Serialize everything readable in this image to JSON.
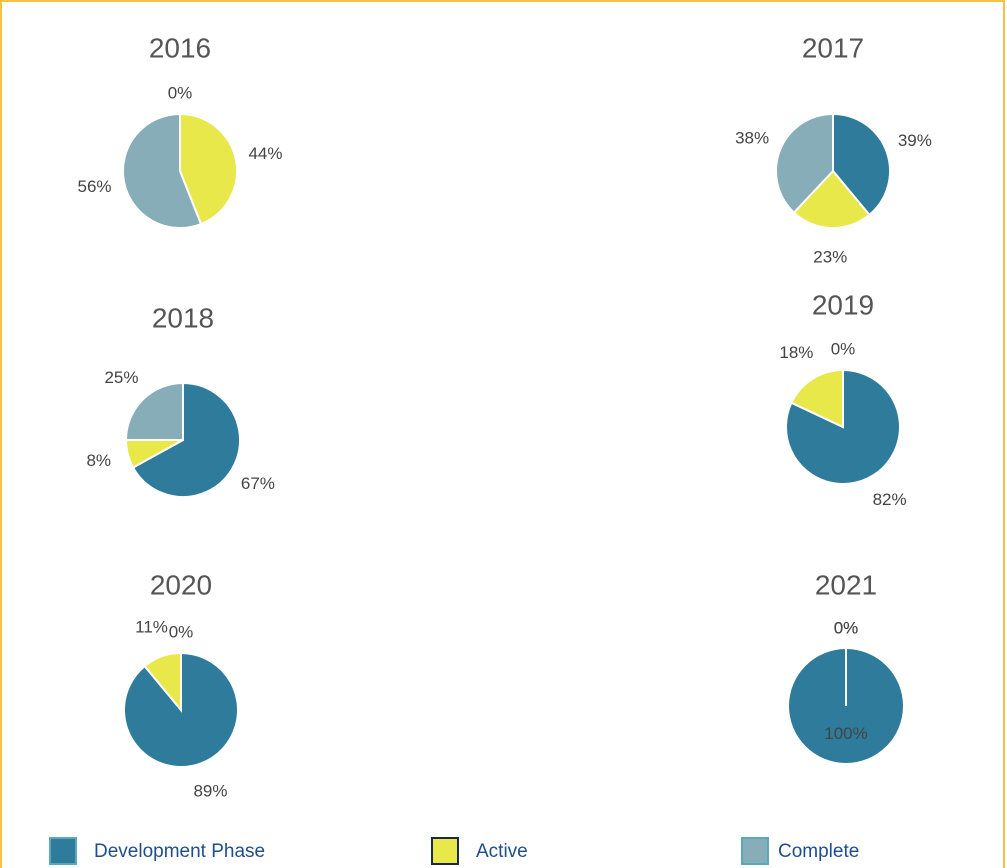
{
  "chart_data": [
    {
      "type": "pie",
      "title": "2016",
      "categories": [
        "Development Phase",
        "Active",
        "Complete"
      ],
      "values": [
        0,
        44,
        56
      ],
      "value_labels": [
        "0%",
        "44%",
        "56%"
      ],
      "colors": [
        "#2e7b9b",
        "#e8e84a",
        "#87adb8"
      ]
    },
    {
      "type": "pie",
      "title": "2017",
      "categories": [
        "Development Phase",
        "Active",
        "Complete"
      ],
      "values": [
        39,
        23,
        38
      ],
      "value_labels": [
        "39%",
        "23%",
        "38%"
      ],
      "colors": [
        "#2e7b9b",
        "#e8e84a",
        "#87adb8"
      ]
    },
    {
      "type": "pie",
      "title": "2018",
      "categories": [
        "Development Phase",
        "Active",
        "Complete"
      ],
      "values": [
        67,
        8,
        25
      ],
      "value_labels": [
        "67%",
        "8%",
        "25%"
      ],
      "colors": [
        "#2e7b9b",
        "#e8e84a",
        "#87adb8"
      ]
    },
    {
      "type": "pie",
      "title": "2019",
      "categories": [
        "Development Phase",
        "Active",
        "Complete"
      ],
      "values": [
        82,
        18,
        0
      ],
      "value_labels": [
        "82%",
        "18%",
        "0%"
      ],
      "colors": [
        "#2e7b9b",
        "#e8e84a",
        "#87adb8"
      ]
    },
    {
      "type": "pie",
      "title": "2020",
      "categories": [
        "Development Phase",
        "Active",
        "Complete"
      ],
      "values": [
        89,
        11,
        0
      ],
      "value_labels": [
        "89%",
        "11%",
        "0%"
      ],
      "colors": [
        "#2e7b9b",
        "#e8e84a",
        "#87adb8"
      ]
    },
    {
      "type": "pie",
      "title": "2021",
      "categories": [
        "Development Phase",
        "Active",
        "Complete"
      ],
      "values": [
        100,
        0,
        0
      ],
      "value_labels": [
        "100%",
        "0%",
        "0%"
      ],
      "colors": [
        "#2e7b9b",
        "#e8e84a",
        "#87adb8"
      ]
    }
  ]
}
